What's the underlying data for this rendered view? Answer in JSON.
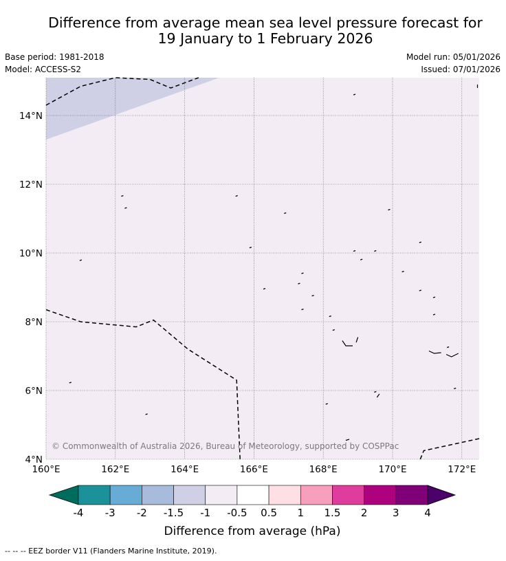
{
  "title": {
    "line1": "Difference from average mean sea level pressure forecast for",
    "line2": "19 January to 1 February 2026"
  },
  "meta": {
    "base_period": "Base period: 1981-2018",
    "model": "Model: ACCESS-S2",
    "model_run": "Model run: 05/01/2026",
    "issued": "Issued: 07/01/2026"
  },
  "map": {
    "copyright": "© Commonwealth of Australia 2026, Bureau of Meteorology, supported by COSPPac",
    "lon_labels": [
      "160°E",
      "162°E",
      "164°E",
      "166°E",
      "168°E",
      "170°E",
      "172°E"
    ],
    "lat_labels": [
      "14°N",
      "12°N",
      "10°N",
      "8°N",
      "6°N",
      "4°N"
    ],
    "lon_values": [
      160,
      162,
      164,
      166,
      168,
      170,
      172
    ],
    "lat_values": [
      14,
      12,
      10,
      8,
      6,
      4
    ],
    "extent": {
      "lon": [
        160,
        172.5
      ],
      "lat": [
        4,
        15.1
      ]
    },
    "fill_regions": [
      {
        "name": "minus-1-to-minus-1p5",
        "color": "#cfcfe5",
        "polygon": [
          [
            160,
            15.1
          ],
          [
            165,
            15.1
          ],
          [
            160,
            13.3
          ]
        ]
      },
      {
        "name": "minus-0p5-to-minus-1",
        "color": "#f3ecf5",
        "background": true
      }
    ],
    "eez_line_1": [
      [
        160,
        14.3
      ],
      [
        161,
        14.85
      ],
      [
        162,
        15.1
      ],
      [
        163,
        15.05
      ],
      [
        163.6,
        14.8
      ],
      [
        164.4,
        15.1
      ]
    ],
    "eez_line_2": [
      [
        160,
        8.35
      ],
      [
        161,
        8.0
      ],
      [
        162.6,
        7.85
      ],
      [
        163.1,
        8.05
      ],
      [
        164.1,
        7.2
      ],
      [
        165.5,
        6.3
      ],
      [
        165.6,
        4.0
      ]
    ],
    "eez_line_3": [
      [
        170.8,
        4.0
      ],
      [
        170.9,
        4.25
      ],
      [
        172.5,
        4.6
      ]
    ],
    "islands": [
      [
        161.0,
        9.78
      ],
      [
        160.7,
        6.22
      ],
      [
        162.3,
        11.3
      ],
      [
        162.2,
        11.65
      ],
      [
        165.5,
        11.65
      ],
      [
        166.9,
        11.15
      ],
      [
        165.9,
        10.15
      ],
      [
        166.3,
        8.95
      ],
      [
        167.4,
        9.4
      ],
      [
        167.3,
        9.1
      ],
      [
        167.7,
        8.75
      ],
      [
        167.4,
        8.35
      ],
      [
        168.2,
        8.15
      ],
      [
        168.3,
        7.75
      ],
      [
        168.9,
        10.05
      ],
      [
        169.1,
        9.8
      ],
      [
        169.5,
        10.05
      ],
      [
        169.9,
        11.25
      ],
      [
        170.8,
        10.3
      ],
      [
        170.3,
        9.45
      ],
      [
        170.8,
        8.9
      ],
      [
        171.2,
        8.7
      ],
      [
        171.2,
        8.2
      ],
      [
        168.1,
        5.6
      ],
      [
        169.5,
        5.95
      ],
      [
        168.9,
        14.6
      ],
      [
        171.6,
        7.25
      ],
      [
        171.8,
        6.05
      ],
      [
        162.9,
        5.3
      ]
    ]
  },
  "colorbar": {
    "ticks": [
      "-4",
      "-3",
      "-2",
      "-1.5",
      "-1",
      "-0.5",
      "0.5",
      "1",
      "1.5",
      "2",
      "3",
      "4"
    ],
    "colors": [
      "#006c5e",
      "#1b9199",
      "#67acd4",
      "#a7bbdc",
      "#cfcfe5",
      "#f3ecf5",
      "#ffffff",
      "#fee0e4",
      "#f79fbc",
      "#de3d9d",
      "#ad017e",
      "#800078",
      "#4c006a"
    ],
    "label": "Difference from average (hPa)"
  },
  "footer": {
    "legend_text": "--  --  -- EEZ border V11 (Flanders Marine Institute, 2019)."
  },
  "colors": {
    "gridline": "#555555",
    "coast": "#000000"
  }
}
